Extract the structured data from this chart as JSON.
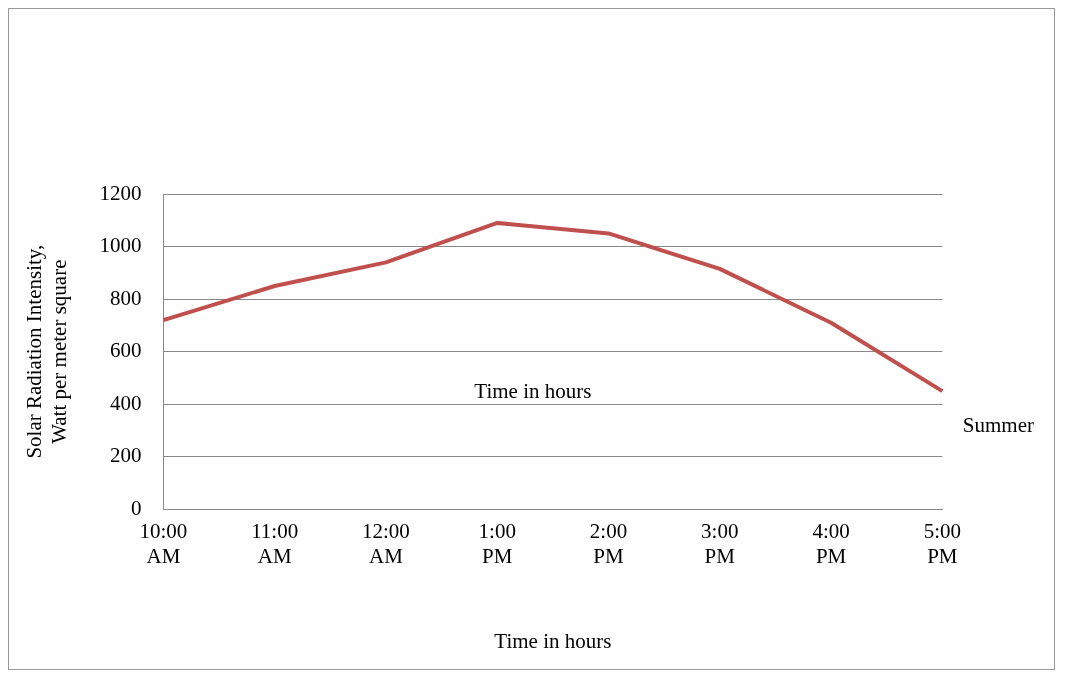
{
  "chart_data": {
    "type": "line",
    "categories": [
      "10:00 AM",
      "11:00 AM",
      "12:00 AM",
      "1:00 PM",
      "2:00 PM",
      "3:00 PM",
      "4:00 PM",
      "5:00 PM"
    ],
    "series": [
      {
        "name": "Summer",
        "color": "#c0504d",
        "values": [
          720,
          850,
          940,
          1090,
          1050,
          915,
          710,
          450
        ]
      }
    ],
    "ylim": [
      0,
      1200
    ],
    "yticks": [
      0,
      200,
      400,
      600,
      800,
      1000,
      1200
    ],
    "grid": "y",
    "legend": "right",
    "marker": "none",
    "line_style": "solid",
    "ylabel": "Solar Radiation Intensity, Watt per meter square",
    "xlabel": "Time in hours",
    "annotations": [
      "Time in hours"
    ]
  }
}
